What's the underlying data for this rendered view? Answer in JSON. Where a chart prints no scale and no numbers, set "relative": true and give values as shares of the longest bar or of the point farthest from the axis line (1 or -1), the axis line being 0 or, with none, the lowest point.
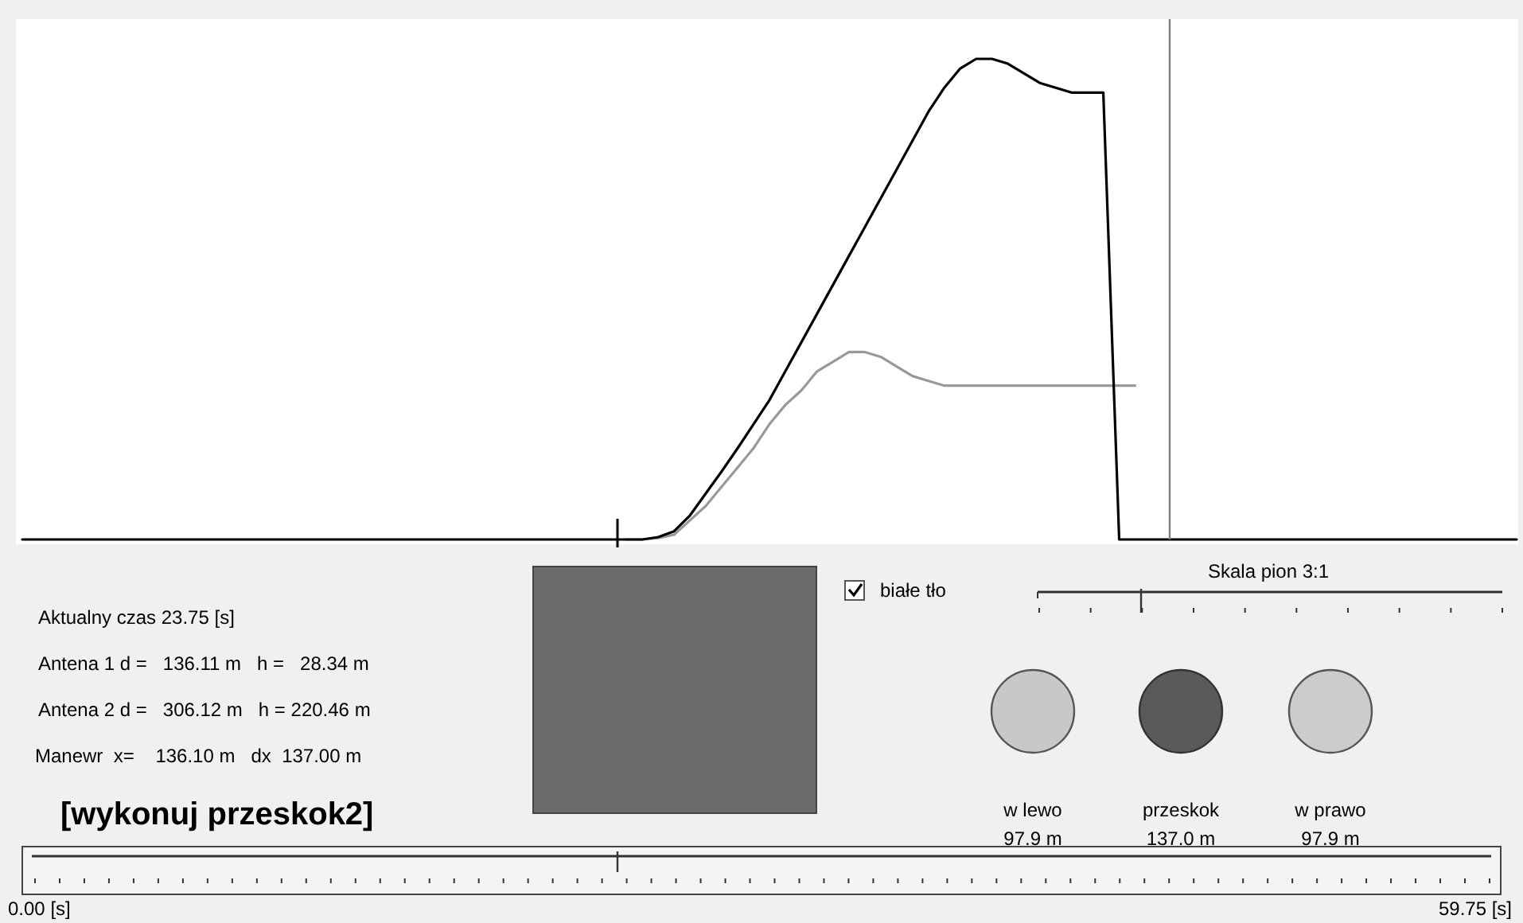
{
  "chart_data": {
    "type": "line",
    "relative": true,
    "categories": [
      null,
      null,
      null,
      null,
      null,
      null,
      null,
      null,
      null,
      null,
      null,
      null,
      null,
      null,
      null,
      null,
      null,
      null,
      null,
      null,
      null,
      null,
      null,
      null,
      null,
      null,
      null,
      null,
      null,
      null,
      null,
      null,
      null,
      null,
      null,
      null,
      null,
      null,
      null,
      null,
      null,
      null,
      null,
      null,
      null,
      null,
      null,
      null,
      null,
      null,
      null,
      null,
      null,
      null,
      null,
      null,
      null,
      null,
      null,
      null,
      null,
      null,
      null,
      null,
      null,
      null,
      null,
      null,
      null,
      null,
      null,
      null,
      null,
      null,
      null,
      null,
      null,
      null,
      null,
      null,
      null,
      null,
      null,
      null,
      null,
      null,
      null,
      null,
      null,
      null,
      null,
      null,
      null,
      null,
      null
    ],
    "series": [
      {
        "color": "#999999",
        "values": [
          null,
          null,
          null,
          null,
          null,
          null,
          null,
          null,
          null,
          null,
          null,
          null,
          null,
          null,
          null,
          null,
          null,
          null,
          null,
          null,
          null,
          null,
          null,
          null,
          null,
          null,
          null,
          null,
          null,
          null,
          null,
          null,
          null,
          null,
          null,
          null,
          null,
          null,
          0,
          0,
          0.003,
          0.01,
          0.04,
          0.07,
          0.11,
          0.15,
          0.19,
          0.24,
          0.28,
          0.31,
          0.35,
          0.37,
          0.39,
          0.39,
          0.38,
          0.36,
          0.34,
          0.33,
          0.32,
          0.32,
          0.32,
          0.32,
          0.32,
          0.32,
          0.32,
          0.32,
          0.32,
          0.32,
          0.32,
          0.32,
          0.32,
          null,
          null,
          null,
          null,
          null,
          null,
          null,
          null,
          null,
          null,
          null,
          null,
          null,
          null,
          null,
          null,
          null,
          null,
          null,
          null,
          null,
          null,
          null,
          null
        ]
      },
      {
        "color": "#000000",
        "values": [
          0,
          0,
          0,
          0,
          0,
          0,
          0,
          0,
          0,
          0,
          0,
          0,
          0,
          0,
          0,
          0,
          0,
          0,
          0,
          0,
          0,
          0,
          0,
          0,
          0,
          0,
          0,
          0,
          0,
          0,
          0,
          0,
          0,
          0,
          0,
          0,
          0,
          0,
          0,
          0,
          0.005,
          0.017,
          0.05,
          0.096,
          0.142,
          0.19,
          0.24,
          0.29,
          0.35,
          0.41,
          0.47,
          0.53,
          0.59,
          0.65,
          0.71,
          0.77,
          0.83,
          0.89,
          0.94,
          0.98,
          1,
          1,
          0.99,
          0.97,
          0.95,
          0.94,
          0.93,
          0.93,
          0.93,
          0,
          0,
          0,
          0,
          0,
          0,
          0,
          0,
          0,
          0,
          0,
          0,
          0,
          0,
          0,
          0,
          0,
          0,
          0,
          0,
          0,
          0,
          0,
          0,
          0,
          0
        ]
      }
    ],
    "annotations": [
      "Aktualny czas 23.75 [s]",
      "Antena 1 d =   136.11 m   h =   28.34 m",
      "Antena 2 d =   306.12 m   h = 220.46 m",
      "Manewr  x=    136.10 m   dx  137.00 m",
      "[wykonuj przeskok2]",
      "białe tło",
      "Skala pion 3:1",
      "w lewo",
      "97.9 m",
      "przeskok",
      "137.0 m",
      "w prawo",
      "97.9 m",
      "0.00 [s]",
      "59.75 [s]"
    ]
  }
}
